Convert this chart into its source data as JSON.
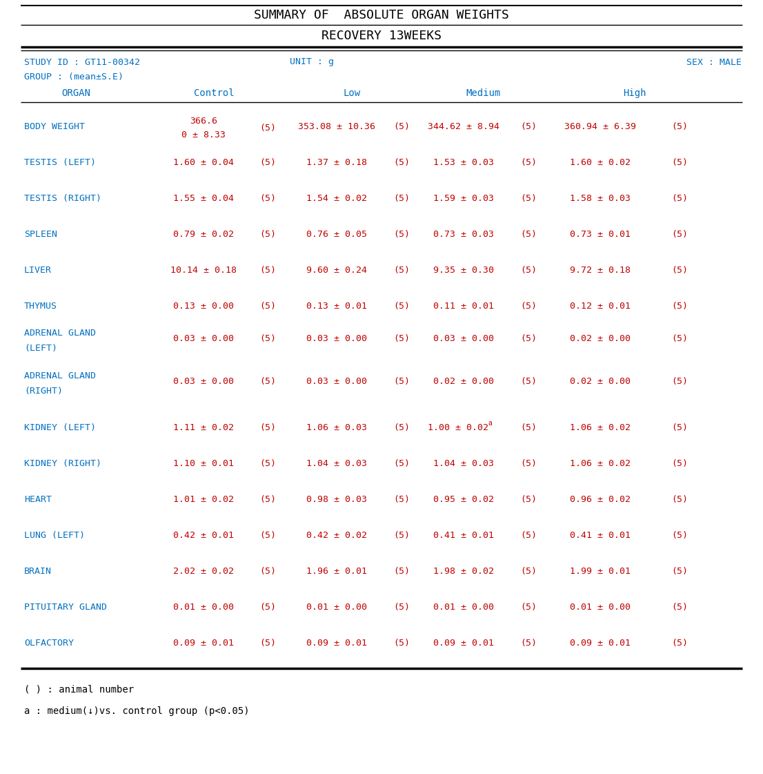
{
  "title1": "SUMMARY OF  ABSOLUTE ORGAN WEIGHTS",
  "title2": "RECOVERY 13WEEKS",
  "study_id": "STUDY ID : GT11-00342",
  "unit": "UNIT : g",
  "sex": "SEX : MALE",
  "group": "GROUP : (mean±S.E)",
  "rows": [
    {
      "organ": "BODY WEIGHT",
      "organ2": "",
      "ctrl_val": "366.6",
      "ctrl_val2": "0 ± 8.33",
      "ctrl_n": "(5)",
      "low_val": "353.08 ± 10.36",
      "low_n": "(5)",
      "med_val": "344.62 ± 8.94",
      "med_n": "(5)",
      "high_val": "360.94 ± 6.39",
      "high_n": "(5)",
      "two_line_ctrl": true,
      "med_super": false,
      "body_weight": true
    },
    {
      "organ": "TESTIS (LEFT)",
      "organ2": "",
      "ctrl_val": "1.60 ± 0.04",
      "ctrl_n": "(5)",
      "low_val": "1.37 ± 0.18",
      "low_n": "(5)",
      "med_val": "1.53 ± 0.03",
      "med_n": "(5)",
      "high_val": "1.60 ± 0.02",
      "high_n": "(5)",
      "two_line_ctrl": false,
      "med_super": false,
      "body_weight": false
    },
    {
      "organ": "TESTIS (RIGHT)",
      "organ2": "",
      "ctrl_val": "1.55 ± 0.04",
      "ctrl_n": "(5)",
      "low_val": "1.54 ± 0.02",
      "low_n": "(5)",
      "med_val": "1.59 ± 0.03",
      "med_n": "(5)",
      "high_val": "1.58 ± 0.03",
      "high_n": "(5)",
      "two_line_ctrl": false,
      "med_super": false,
      "body_weight": false
    },
    {
      "organ": "SPLEEN",
      "organ2": "",
      "ctrl_val": "0.79 ± 0.02",
      "ctrl_n": "(5)",
      "low_val": "0.76 ± 0.05",
      "low_n": "(5)",
      "med_val": "0.73 ± 0.03",
      "med_n": "(5)",
      "high_val": "0.73 ± 0.01",
      "high_n": "(5)",
      "two_line_ctrl": false,
      "med_super": false,
      "body_weight": false
    },
    {
      "organ": "LIVER",
      "organ2": "",
      "ctrl_val": "10.14 ± 0.18",
      "ctrl_n": "(5)",
      "low_val": "9.60 ± 0.24",
      "low_n": "(5)",
      "med_val": "9.35 ± 0.30",
      "med_n": "(5)",
      "high_val": "9.72 ± 0.18",
      "high_n": "(5)",
      "two_line_ctrl": false,
      "med_super": false,
      "body_weight": false
    },
    {
      "organ": "THYMUS",
      "organ2": "",
      "ctrl_val": "0.13 ± 0.00",
      "ctrl_n": "(5)",
      "low_val": "0.13 ± 0.01",
      "low_n": "(5)",
      "med_val": "0.11 ± 0.01",
      "med_n": "(5)",
      "high_val": "0.12 ± 0.01",
      "high_n": "(5)",
      "two_line_ctrl": false,
      "med_super": false,
      "body_weight": false
    },
    {
      "organ": "ADRENAL GLAND",
      "organ2": "(LEFT)",
      "ctrl_val": "0.03 ± 0.00",
      "ctrl_n": "(5)",
      "low_val": "0.03 ± 0.00",
      "low_n": "(5)",
      "med_val": "0.03 ± 0.00",
      "med_n": "(5)",
      "high_val": "0.02 ± 0.00",
      "high_n": "(5)",
      "two_line_ctrl": false,
      "med_super": false,
      "body_weight": false
    },
    {
      "organ": "ADRENAL GLAND",
      "organ2": "(RIGHT)",
      "ctrl_val": "0.03 ± 0.00",
      "ctrl_n": "(5)",
      "low_val": "0.03 ± 0.00",
      "low_n": "(5)",
      "med_val": "0.02 ± 0.00",
      "med_n": "(5)",
      "high_val": "0.02 ± 0.00",
      "high_n": "(5)",
      "two_line_ctrl": false,
      "med_super": false,
      "body_weight": false
    },
    {
      "organ": "KIDNEY (LEFT)",
      "organ2": "",
      "ctrl_val": "1.11 ± 0.02",
      "ctrl_n": "(5)",
      "low_val": "1.06 ± 0.03",
      "low_n": "(5)",
      "med_val": "1.00 ± 0.02",
      "med_n": "(5)",
      "high_val": "1.06 ± 0.02",
      "high_n": "(5)",
      "two_line_ctrl": false,
      "med_super": true,
      "body_weight": false
    },
    {
      "organ": "KIDNEY (RIGHT)",
      "organ2": "",
      "ctrl_val": "1.10 ± 0.01",
      "ctrl_n": "(5)",
      "low_val": "1.04 ± 0.03",
      "low_n": "(5)",
      "med_val": "1.04 ± 0.03",
      "med_n": "(5)",
      "high_val": "1.06 ± 0.02",
      "high_n": "(5)",
      "two_line_ctrl": false,
      "med_super": false,
      "body_weight": false
    },
    {
      "organ": "HEART",
      "organ2": "",
      "ctrl_val": "1.01 ± 0.02",
      "ctrl_n": "(5)",
      "low_val": "0.98 ± 0.03",
      "low_n": "(5)",
      "med_val": "0.95 ± 0.02",
      "med_n": "(5)",
      "high_val": "0.96 ± 0.02",
      "high_n": "(5)",
      "two_line_ctrl": false,
      "med_super": false,
      "body_weight": false
    },
    {
      "organ": "LUNG (LEFT)",
      "organ2": "",
      "ctrl_val": "0.42 ± 0.01",
      "ctrl_n": "(5)",
      "low_val": "0.42 ± 0.02",
      "low_n": "(5)",
      "med_val": "0.41 ± 0.01",
      "med_n": "(5)",
      "high_val": "0.41 ± 0.01",
      "high_n": "(5)",
      "two_line_ctrl": false,
      "med_super": false,
      "body_weight": false
    },
    {
      "organ": "BRAIN",
      "organ2": "",
      "ctrl_val": "2.02 ± 0.02",
      "ctrl_n": "(5)",
      "low_val": "1.96 ± 0.01",
      "low_n": "(5)",
      "med_val": "1.98 ± 0.02",
      "med_n": "(5)",
      "high_val": "1.99 ± 0.01",
      "high_n": "(5)",
      "two_line_ctrl": false,
      "med_super": false,
      "body_weight": false
    },
    {
      "organ": "PITUITARY GLAND",
      "organ2": "",
      "ctrl_val": "0.01 ± 0.00",
      "ctrl_n": "(5)",
      "low_val": "0.01 ± 0.00",
      "low_n": "(5)",
      "med_val": "0.01 ± 0.00",
      "med_n": "(5)",
      "high_val": "0.01 ± 0.00",
      "high_n": "(5)",
      "two_line_ctrl": false,
      "med_super": false,
      "body_weight": false
    },
    {
      "organ": "OLFACTORY",
      "organ2": "",
      "ctrl_val": "0.09 ± 0.01",
      "ctrl_n": "(5)",
      "low_val": "0.09 ± 0.01",
      "low_n": "(5)",
      "med_val": "0.09 ± 0.01",
      "med_n": "(5)",
      "high_val": "0.09 ± 0.01",
      "high_n": "(5)",
      "two_line_ctrl": false,
      "med_super": false,
      "body_weight": false
    }
  ],
  "footnote1": "( ) : animal number",
  "footnote2": "a : medium(↓)vs. control group (p<0.05)",
  "title_color": "#000000",
  "header_color": "#0070c0",
  "data_color": "#c00000",
  "organ_color": "#0070c0",
  "meta_color": "#0070c0",
  "bg_color": "#ffffff",
  "title_fontsize": 13,
  "header_fontsize": 10,
  "data_fontsize": 9.5,
  "footnote_fontsize": 10
}
